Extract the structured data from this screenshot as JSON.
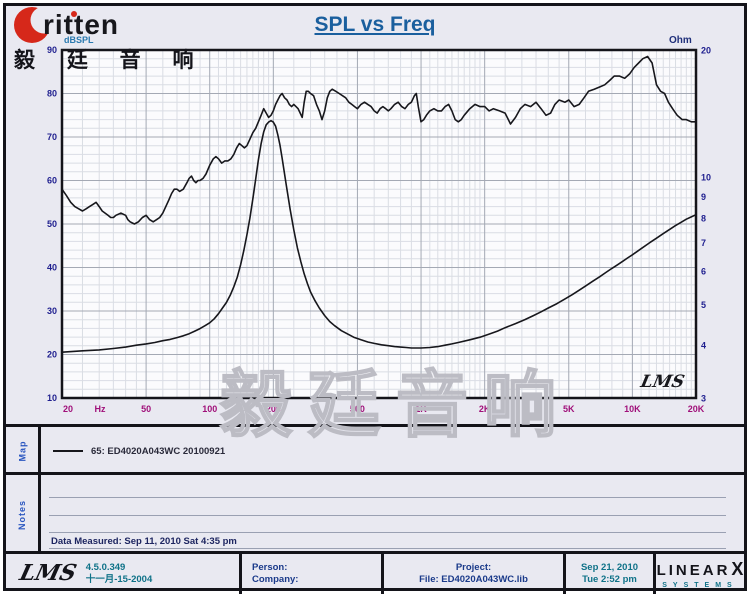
{
  "colors": {
    "title": "#1a5f9e",
    "axis_left": "#1f1f8f",
    "axis_right": "#1f1f8f",
    "axis_bottom": "#a0107a",
    "curve": "#17171c",
    "grid_minor": "#dadde4",
    "grid_major": "#a4a9b4",
    "teal": "#0f7288",
    "navy": "#1a3a8a",
    "brand_red": "#d6281a"
  },
  "logo": {
    "brand": "ritten",
    "cjk": "毅 廷 音 响"
  },
  "title": "SPL vs Freq",
  "chart": {
    "unit_left": "dBSPL",
    "unit_right": "Ohm",
    "corner_logo": "LMS",
    "watermark": "毅廷音响"
  },
  "chart_data": {
    "type": "line",
    "title": "SPL vs Freq",
    "grid": true,
    "x_axis": {
      "label": "Hz",
      "scale": "log",
      "min": 20,
      "max": 20000,
      "ticks": [
        20,
        50,
        100,
        200,
        500,
        1000,
        2000,
        5000,
        10000,
        20000
      ],
      "tick_labels": [
        "20",
        "50",
        "100",
        "200",
        "500",
        "1K",
        "2K",
        "5K",
        "10K",
        "20K"
      ]
    },
    "y_left": {
      "label": "dBSPL",
      "scale": "linear",
      "min": 10,
      "max": 90,
      "ticks": [
        90,
        80,
        70,
        60,
        50,
        40,
        30,
        20,
        10
      ]
    },
    "y_right": {
      "label": "Ohm",
      "scale": "log",
      "min": 3,
      "max": 20,
      "ticks": [
        20,
        10,
        9,
        8,
        7,
        6,
        5,
        4,
        3
      ]
    },
    "series": [
      {
        "name": "65: ED4020A043WC 20100921",
        "axis": "left",
        "unit": "dBSPL",
        "x": [
          20,
          21,
          22,
          23,
          24,
          25,
          26,
          27,
          28,
          29,
          30,
          31,
          32,
          33,
          34,
          35,
          36,
          38,
          40,
          41,
          42,
          44,
          46,
          48,
          50,
          52,
          54,
          56,
          58,
          60,
          62,
          64,
          66,
          68,
          70,
          72,
          75,
          78,
          80,
          82,
          84,
          86,
          88,
          90,
          93,
          96,
          100,
          104,
          107,
          110,
          114,
          118,
          122,
          126,
          130,
          134,
          138,
          142,
          146,
          150,
          155,
          160,
          165,
          170,
          175,
          180,
          185,
          190,
          195,
          200,
          205,
          210,
          215,
          220,
          226,
          232,
          238,
          244,
          250,
          256,
          262,
          268,
          274,
          280,
          286,
          293,
          300,
          310,
          320,
          330,
          340,
          350,
          360,
          370,
          380,
          395,
          410,
          425,
          440,
          455,
          470,
          485,
          500,
          520,
          540,
          560,
          580,
          600,
          620,
          640,
          660,
          680,
          700,
          720,
          750,
          780,
          810,
          840,
          870,
          900,
          930,
          950,
          970,
          1000,
          1030,
          1060,
          1100,
          1150,
          1200,
          1250,
          1300,
          1350,
          1400,
          1450,
          1500,
          1550,
          1600,
          1700,
          1800,
          1900,
          2000,
          2100,
          2200,
          2350,
          2500,
          2650,
          2800,
          2950,
          3100,
          3300,
          3500,
          3700,
          3900,
          4100,
          4300,
          4500,
          4800,
          5000,
          5300,
          5600,
          5900,
          6200,
          6600,
          7000,
          7400,
          7800,
          8200,
          8700,
          9200,
          9700,
          10200,
          10700,
          11200,
          11800,
          12400,
          13000,
          13600,
          14200,
          14800,
          15500,
          16300,
          17200,
          18000,
          19000,
          20000
        ],
        "y": [
          58,
          56.5,
          55,
          54,
          53.5,
          53,
          53.5,
          54,
          54.5,
          55,
          54,
          53,
          52.5,
          52,
          51.5,
          51.5,
          52,
          52.5,
          52,
          51,
          50.5,
          50,
          50.5,
          51.5,
          52,
          51,
          50.5,
          51,
          51.5,
          52.5,
          54,
          55.5,
          57,
          58,
          58,
          57.5,
          58,
          59.5,
          60.5,
          61,
          60,
          59.5,
          60,
          60,
          60.5,
          61.5,
          63.5,
          65,
          65.5,
          65,
          64,
          64.5,
          64.5,
          65,
          66,
          67.5,
          68.5,
          68,
          67.5,
          68,
          69.5,
          71,
          72,
          73.5,
          75,
          76.5,
          75.5,
          74.5,
          75,
          76,
          77.5,
          78.5,
          79.5,
          80,
          79,
          78.5,
          77.5,
          77,
          77.5,
          77,
          76.5,
          75.5,
          74.5,
          78,
          80.5,
          80.5,
          80,
          79.5,
          77.5,
          76,
          74,
          76,
          79,
          80.5,
          81,
          80.5,
          80,
          79.5,
          79,
          78,
          77.5,
          77,
          76.5,
          77.5,
          78,
          77.5,
          77,
          76,
          75.5,
          76.5,
          77,
          76.5,
          76,
          76.5,
          77.5,
          78,
          77,
          76.5,
          77.5,
          78,
          79.5,
          80,
          77,
          73.5,
          74,
          75,
          76,
          76.5,
          76,
          76,
          77,
          77.5,
          76,
          74,
          73.5,
          74,
          75,
          76.5,
          77.5,
          77,
          77,
          76,
          76.5,
          76,
          75.5,
          73,
          74.5,
          76.5,
          77.5,
          77,
          78,
          76.5,
          75,
          75.5,
          77.5,
          78.5,
          78,
          78.5,
          77,
          77.5,
          79,
          80.5,
          81,
          81.5,
          82,
          83,
          84,
          84,
          83.5,
          84.5,
          86,
          87,
          88,
          88.5,
          87,
          82,
          80.5,
          80,
          78,
          76.5,
          75,
          74,
          74,
          73.5,
          73.5
        ]
      },
      {
        "name": "impedance",
        "axis": "right",
        "unit": "Ohm",
        "x": [
          20,
          25,
          30,
          35,
          40,
          45,
          50,
          55,
          60,
          65,
          70,
          75,
          80,
          85,
          90,
          95,
          100,
          105,
          110,
          115,
          120,
          125,
          130,
          135,
          140,
          145,
          150,
          155,
          160,
          165,
          170,
          175,
          180,
          185,
          190,
          195,
          200,
          205,
          210,
          215,
          220,
          230,
          240,
          250,
          260,
          270,
          280,
          290,
          300,
          315,
          330,
          350,
          370,
          390,
          420,
          450,
          480,
          520,
          560,
          600,
          650,
          700,
          750,
          800,
          850,
          900,
          950,
          1000,
          1100,
          1200,
          1300,
          1400,
          1500,
          1700,
          1900,
          2100,
          2300,
          2500,
          2800,
          3100,
          3400,
          3700,
          4000,
          4400,
          4800,
          5200,
          5600,
          6000,
          6500,
          7000,
          7500,
          8000,
          8500,
          9000,
          9500,
          10000,
          11000,
          12000,
          13000,
          14000,
          15000,
          16000,
          17000,
          18000,
          19000,
          20000
        ],
        "y": [
          3.85,
          3.88,
          3.9,
          3.93,
          3.96,
          4.0,
          4.03,
          4.06,
          4.1,
          4.13,
          4.17,
          4.21,
          4.26,
          4.32,
          4.38,
          4.45,
          4.52,
          4.62,
          4.75,
          4.9,
          5.05,
          5.25,
          5.5,
          5.8,
          6.2,
          6.7,
          7.3,
          8.0,
          8.9,
          9.9,
          11.0,
          12.0,
          12.8,
          13.3,
          13.5,
          13.6,
          13.5,
          13.2,
          12.6,
          11.9,
          11.1,
          9.6,
          8.4,
          7.5,
          6.8,
          6.3,
          5.9,
          5.6,
          5.35,
          5.1,
          4.9,
          4.7,
          4.55,
          4.45,
          4.33,
          4.25,
          4.18,
          4.12,
          4.07,
          4.04,
          4.01,
          3.99,
          3.97,
          3.96,
          3.95,
          3.94,
          3.94,
          3.94,
          3.95,
          3.97,
          4.0,
          4.03,
          4.06,
          4.12,
          4.18,
          4.25,
          4.32,
          4.4,
          4.5,
          4.6,
          4.7,
          4.8,
          4.9,
          5.02,
          5.15,
          5.27,
          5.4,
          5.52,
          5.67,
          5.81,
          5.95,
          6.08,
          6.2,
          6.32,
          6.44,
          6.55,
          6.77,
          6.98,
          7.17,
          7.35,
          7.52,
          7.68,
          7.82,
          7.95,
          8.05,
          8.15
        ]
      }
    ]
  },
  "map": {
    "label": "Map",
    "legend": "65: ED4020A043WC  20100921"
  },
  "notes": {
    "label": "Notes",
    "measured": "Data Measured: Sep 11, 2010  Sat  4:35 pm"
  },
  "footer": {
    "lms": "LMS",
    "version": "4.5.0.349",
    "date_cn": "十一月-15-2004",
    "person": "Person:",
    "company": "Company:",
    "project": "Project:",
    "file": "File: ED4020A043WC.lib",
    "date": "Sep 21, 2010",
    "time": "Tue 2:52 pm",
    "brand_main": "LINEAR",
    "brand_x": "X",
    "brand_sub": "SYSTEMS"
  }
}
